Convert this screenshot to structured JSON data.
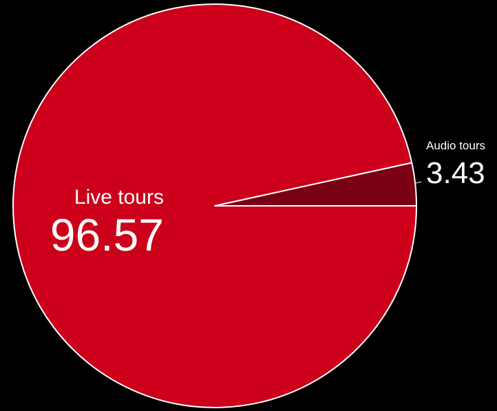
{
  "chart_data": {
    "type": "pie",
    "title": "",
    "slices": [
      {
        "label": "Live tours",
        "value": 96.57,
        "value_text": "96.57",
        "color": "#cc001b"
      },
      {
        "label": "Audio tours",
        "value": 3.43,
        "value_text": "3.43",
        "color": "#7a0013"
      }
    ],
    "slice_border_color": "#ffffff",
    "background": "#000000",
    "legend": "none"
  }
}
